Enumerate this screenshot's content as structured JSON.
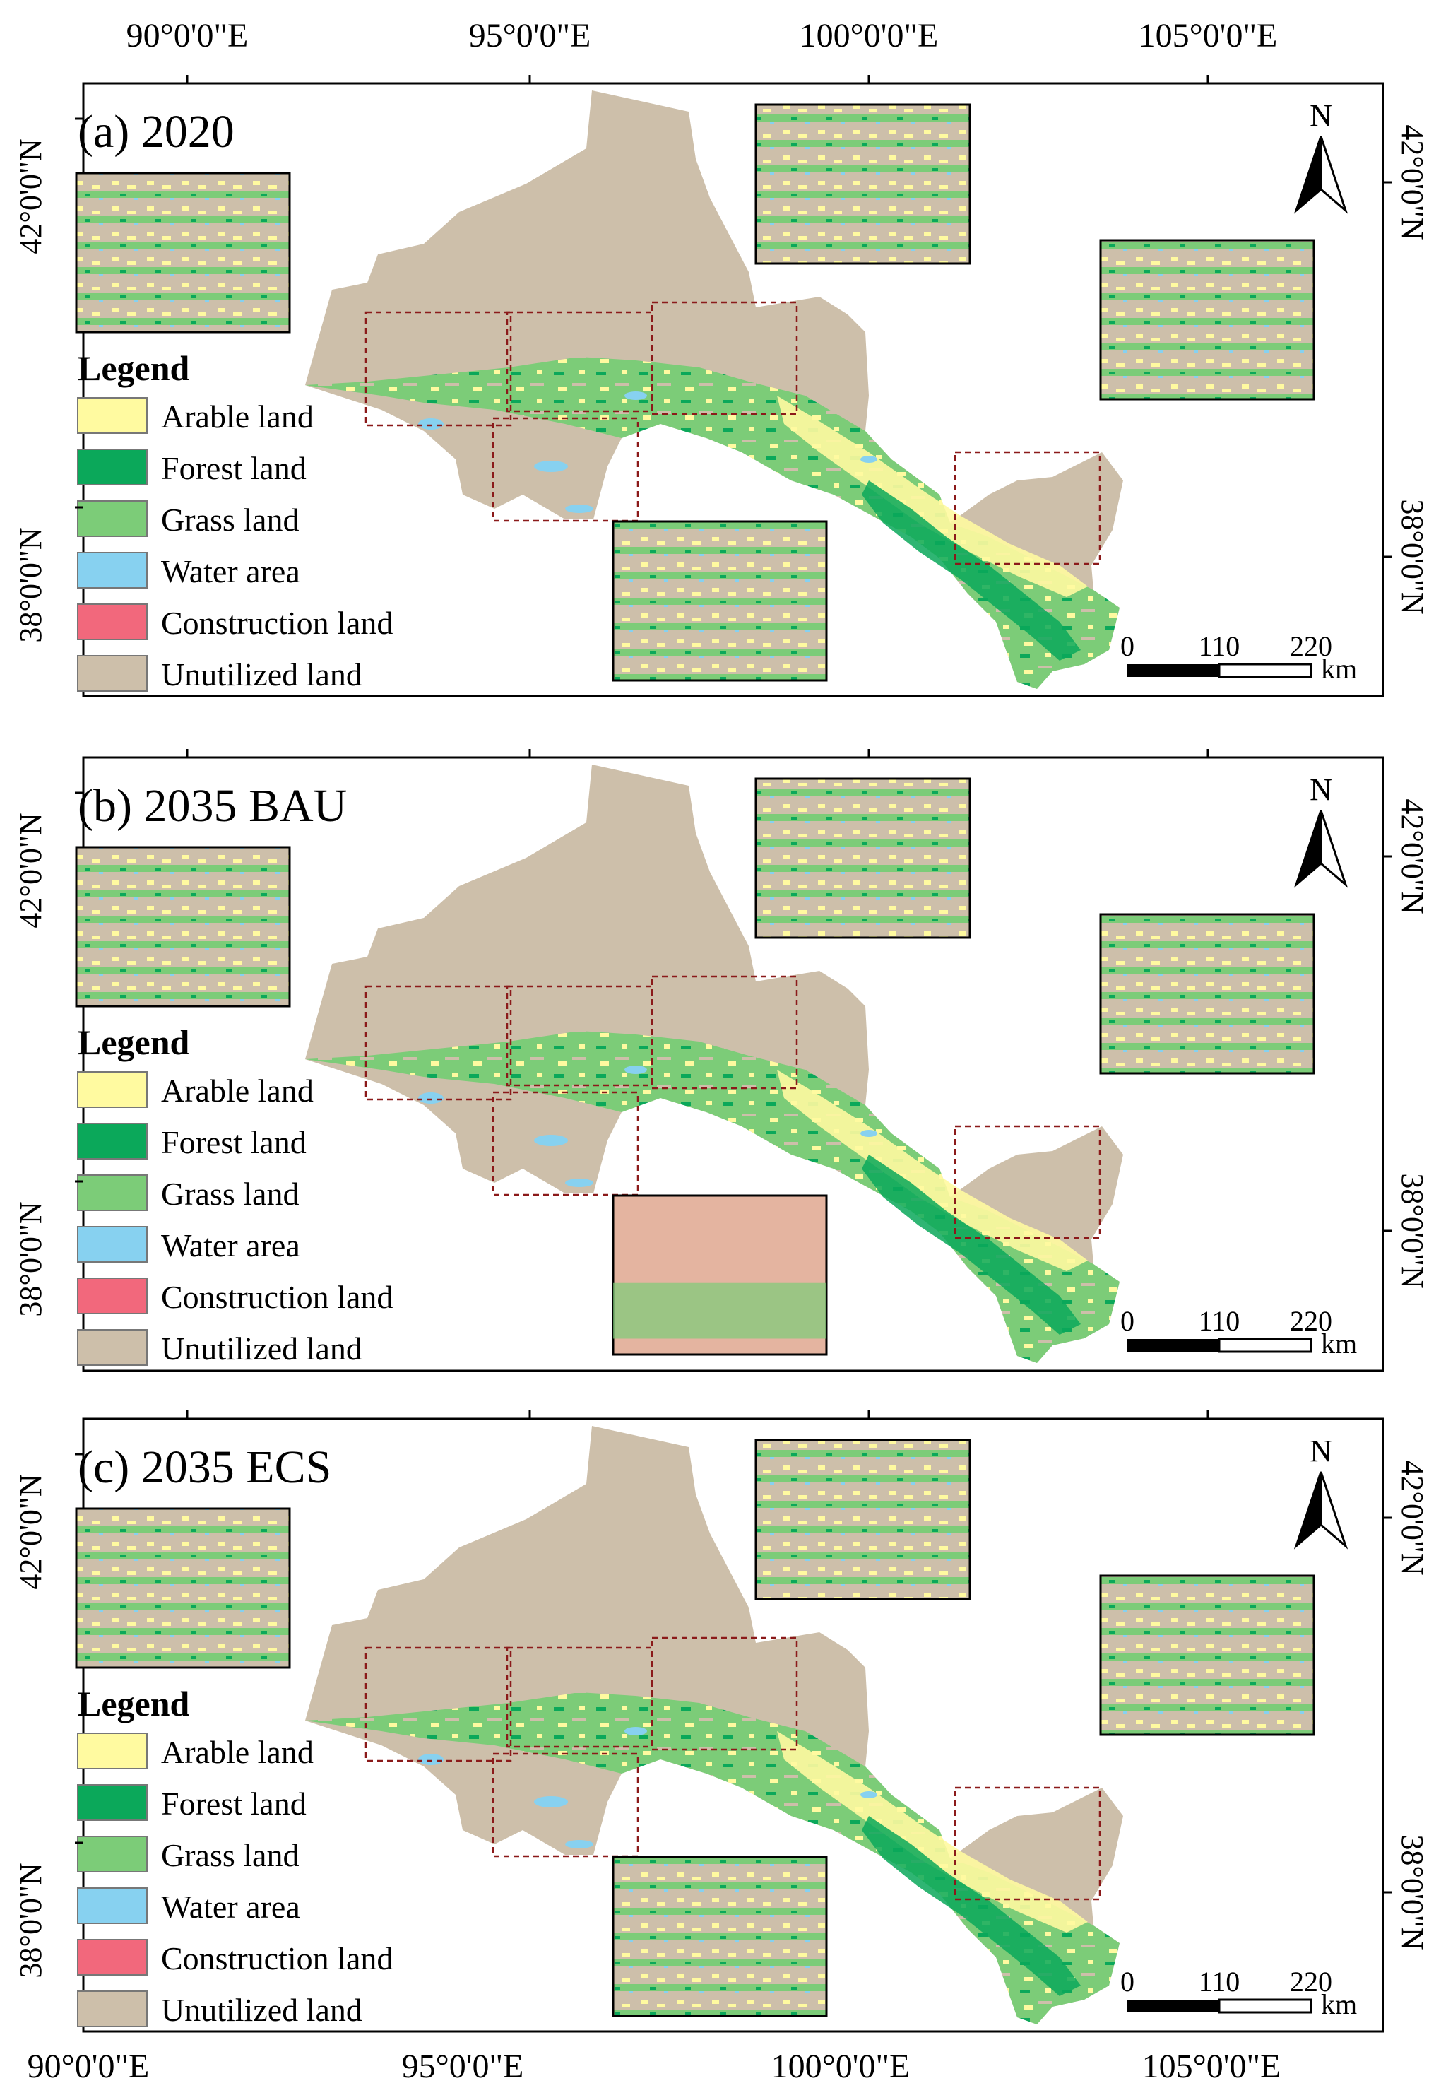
{
  "colors": {
    "arable": "#FFFAA0",
    "forest": "#0BA85A",
    "grass": "#7CCC78",
    "water": "#87D1F0",
    "construction": "#F2687C",
    "unutilized": "#CDBFAA",
    "bau_inset_tint": "#E4B4A0",
    "inset_frame": "#8B1A1A"
  },
  "axes": {
    "top_ticks": [
      "90°0'0\"E",
      "95°0'0\"E",
      "100°0'0\"E",
      "105°0'0\"E"
    ],
    "bottom_ticks": [
      "90°0'0\"E",
      "95°0'0\"E",
      "100°0'0\"E",
      "105°0'0\"E"
    ],
    "left_ticks": [
      "42°0'0\"N",
      "38°0'0\"N"
    ],
    "right_ticks": [
      "42°0'0\"N",
      "38°0'0\"N"
    ]
  },
  "legend": {
    "title": "Legend",
    "items": [
      {
        "label": "Arable land",
        "color": "#FFFAA0"
      },
      {
        "label": "Forest land",
        "color": "#0BA85A"
      },
      {
        "label": "Grass land",
        "color": "#7CCC78"
      },
      {
        "label": "Water area",
        "color": "#87D1F0"
      },
      {
        "label": "Construction land",
        "color": "#F2687C"
      },
      {
        "label": "Unutilized land",
        "color": "#CDBFAA"
      }
    ]
  },
  "north_arrow": {
    "label": "N",
    "icon": "north-arrow-icon"
  },
  "scale_bar": {
    "ticks": [
      "0",
      "110",
      "220"
    ],
    "unit": "km"
  },
  "panels": [
    {
      "id": "a",
      "title": "(a) 2020"
    },
    {
      "id": "b",
      "title": "(b) 2035 BAU"
    },
    {
      "id": "c",
      "title": "(c) 2035 ECS"
    }
  ]
}
